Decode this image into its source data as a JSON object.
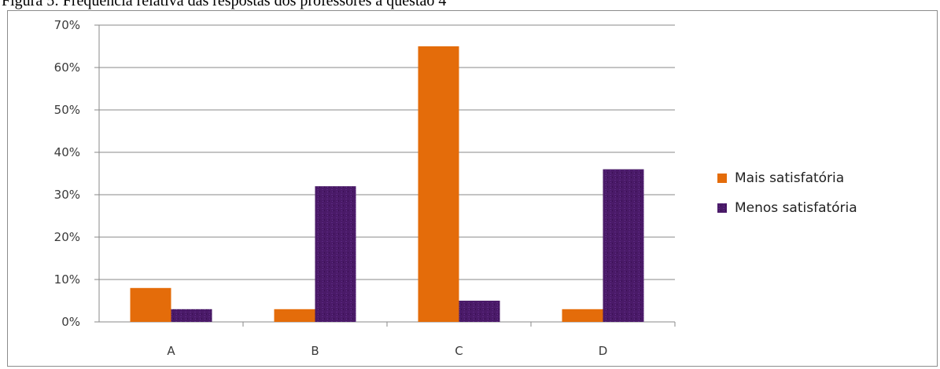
{
  "caption": "Figura 5: Frequência relativa das respostas dos professores à questão 4",
  "chart_data": {
    "type": "bar",
    "categories": [
      "A",
      "B",
      "C",
      "D"
    ],
    "series": [
      {
        "name": "Mais satisfatória",
        "values": [
          8,
          3,
          65,
          3
        ],
        "color": "#e46c0a"
      },
      {
        "name": "Menos satisfatória",
        "values": [
          3,
          32,
          5,
          36
        ],
        "color": "#4b1b6b"
      }
    ],
    "y_ticks": [
      "0%",
      "10%",
      "20%",
      "30%",
      "40%",
      "50%",
      "60%",
      "70%"
    ],
    "ylim": [
      0,
      70
    ],
    "grid": true,
    "legend_position": "right",
    "title": "",
    "xlabel": "",
    "ylabel": ""
  }
}
